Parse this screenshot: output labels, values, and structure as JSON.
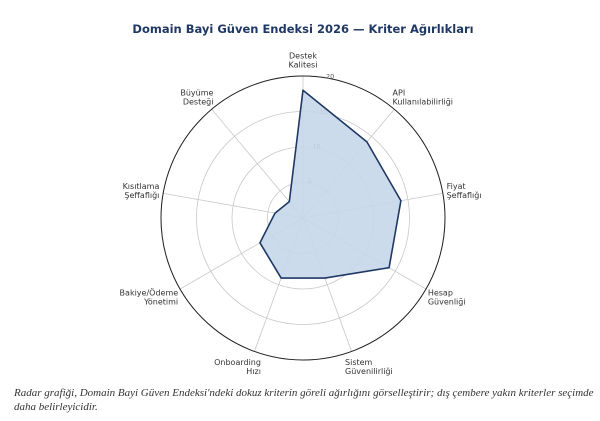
{
  "chart_data": {
    "type": "radar",
    "title": "Domain Bayi Güven Endeksi 2026 — Kriter Ağırlıkları",
    "categories": [
      "Destek\nKalitesi",
      "API\nKullanılabilirliği",
      "Fiyat\nŞeffaflığı",
      "Hesap\nGüvenliği",
      "Sistem\nGüvenilirliği",
      "Onboarding\nHızı",
      "Bakiye/Ödeme\nYönetimi",
      "Kısıtlama\nŞeffaflığı",
      "Büyüme\nDesteği"
    ],
    "values": [
      18,
      14,
      14,
      14,
      9,
      9,
      7,
      4,
      3
    ],
    "color": "#1f3864",
    "fill": "#c6d7ea",
    "ylim": [
      0,
      20
    ],
    "yticks": [
      5,
      10,
      15,
      20
    ],
    "grid": true
  },
  "caption": "Radar grafiği, Domain Bayi Güven Endeksi'ndeki dokuz kriterin göreli ağırlığını görselleştirir; dış çembere yakın kriterler seçimde daha belirleyicidir."
}
